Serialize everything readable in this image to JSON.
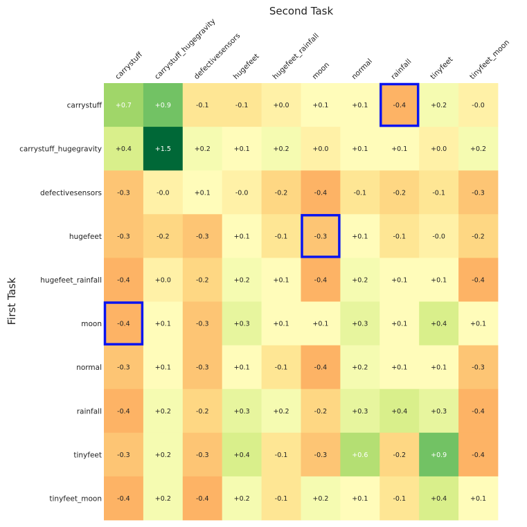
{
  "chart_data": {
    "type": "heatmap",
    "title": "Second Task",
    "xlabel": "Second Task",
    "ylabel": "First Task",
    "x_categories": [
      "carrystuff",
      "carrystuff_hugegravity",
      "defectivesensors",
      "hugefeet",
      "hugefeet_rainfall",
      "moon",
      "normal",
      "rainfall",
      "tinyfeet",
      "tinyfeet_moon"
    ],
    "y_categories": [
      "carrystuff",
      "carrystuff_hugegravity",
      "defectivesensors",
      "hugefeet",
      "hugefeet_rainfall",
      "moon",
      "normal",
      "rainfall",
      "tinyfeet",
      "tinyfeet_moon"
    ],
    "values": [
      [
        0.7,
        0.9,
        -0.1,
        -0.1,
        0.0,
        0.1,
        0.1,
        -0.4,
        0.2,
        -0.0
      ],
      [
        0.4,
        1.5,
        0.2,
        0.1,
        0.2,
        0.0,
        0.1,
        0.1,
        0.0,
        0.2
      ],
      [
        -0.3,
        -0.0,
        0.1,
        -0.0,
        -0.2,
        -0.4,
        -0.1,
        -0.2,
        -0.1,
        -0.3
      ],
      [
        -0.3,
        -0.2,
        -0.3,
        0.1,
        -0.1,
        -0.3,
        0.1,
        -0.1,
        -0.0,
        -0.2
      ],
      [
        -0.4,
        0.0,
        -0.2,
        0.2,
        0.1,
        -0.4,
        0.2,
        0.1,
        0.1,
        -0.4
      ],
      [
        -0.4,
        0.1,
        -0.3,
        0.3,
        0.1,
        0.1,
        0.3,
        0.1,
        0.4,
        0.1
      ],
      [
        -0.3,
        0.1,
        -0.3,
        0.1,
        -0.1,
        -0.4,
        0.2,
        0.1,
        0.1,
        -0.3
      ],
      [
        -0.4,
        0.2,
        -0.2,
        0.3,
        0.2,
        -0.2,
        0.3,
        0.4,
        0.3,
        -0.4
      ],
      [
        -0.3,
        0.2,
        -0.3,
        0.4,
        -0.1,
        -0.3,
        0.6,
        -0.2,
        0.9,
        -0.4
      ],
      [
        -0.4,
        0.2,
        -0.4,
        0.2,
        -0.1,
        0.2,
        0.1,
        -0.1,
        0.4,
        0.1
      ]
    ],
    "labels": [
      [
        "+0.7",
        "+0.9",
        "-0.1",
        "-0.1",
        "+0.0",
        "+0.1",
        "+0.1",
        "-0.4",
        "+0.2",
        "-0.0"
      ],
      [
        "+0.4",
        "+1.5",
        "+0.2",
        "+0.1",
        "+0.2",
        "+0.0",
        "+0.1",
        "+0.1",
        "+0.0",
        "+0.2"
      ],
      [
        "-0.3",
        "-0.0",
        "+0.1",
        "-0.0",
        "-0.2",
        "-0.4",
        "-0.1",
        "-0.2",
        "-0.1",
        "-0.3"
      ],
      [
        "-0.3",
        "-0.2",
        "-0.3",
        "+0.1",
        "-0.1",
        "-0.3",
        "+0.1",
        "-0.1",
        "-0.0",
        "-0.2"
      ],
      [
        "-0.4",
        "+0.0",
        "-0.2",
        "+0.2",
        "+0.1",
        "-0.4",
        "+0.2",
        "+0.1",
        "+0.1",
        "-0.4"
      ],
      [
        "-0.4",
        "+0.1",
        "-0.3",
        "+0.3",
        "+0.1",
        "+0.1",
        "+0.3",
        "+0.1",
        "+0.4",
        "+0.1"
      ],
      [
        "-0.3",
        "+0.1",
        "-0.3",
        "+0.1",
        "-0.1",
        "-0.4",
        "+0.2",
        "+0.1",
        "+0.1",
        "-0.3"
      ],
      [
        "-0.4",
        "+0.2",
        "-0.2",
        "+0.3",
        "+0.2",
        "-0.2",
        "+0.3",
        "+0.4",
        "+0.3",
        "-0.4"
      ],
      [
        "-0.3",
        "+0.2",
        "-0.3",
        "+0.4",
        "-0.1",
        "-0.3",
        "+0.6",
        "-0.2",
        "+0.9",
        "-0.4"
      ],
      [
        "-0.4",
        "+0.2",
        "-0.4",
        "+0.2",
        "-0.1",
        "+0.2",
        "+0.1",
        "-0.1",
        "+0.4",
        "+0.1"
      ]
    ],
    "colorscale": "RdYlGn",
    "vmin": -0.7,
    "vmax": 1.5,
    "highlighted_cells": [
      {
        "row": 0,
        "col": 7
      },
      {
        "row": 3,
        "col": 5
      },
      {
        "row": 5,
        "col": 0
      }
    ],
    "highlight_color": "#0a14f0"
  }
}
